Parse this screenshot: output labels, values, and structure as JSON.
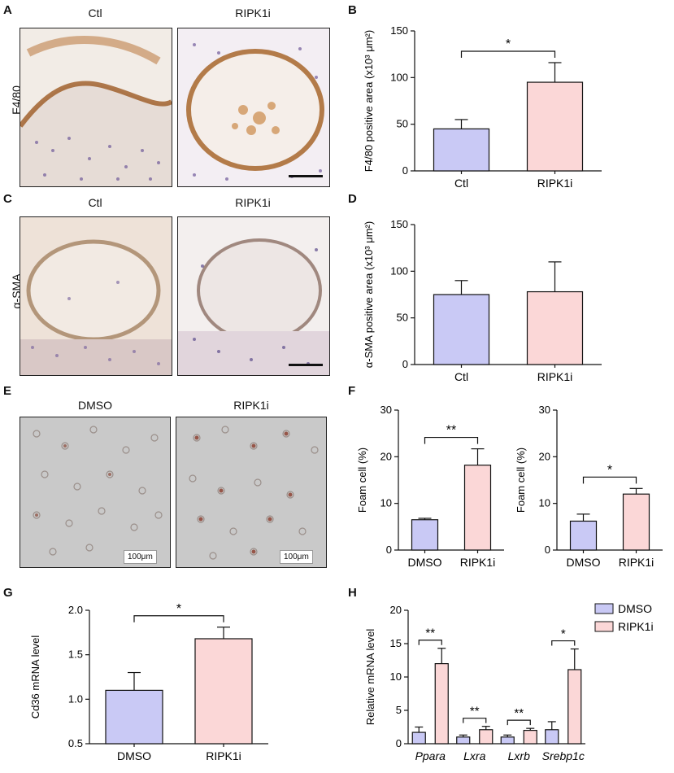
{
  "panels": {
    "A": {
      "letter": "A",
      "row_label": "F4/80",
      "left_title": "Ctl",
      "right_title": "RIPK1i"
    },
    "B": {
      "letter": "B"
    },
    "C": {
      "letter": "C",
      "row_label": "α-SMA",
      "left_title": "Ctl",
      "right_title": "RIPK1i"
    },
    "D": {
      "letter": "D"
    },
    "E": {
      "letter": "E",
      "left_title": "DMSO",
      "right_title": "RIPK1i",
      "scale_left": "100μm",
      "scale_right": "100μm"
    },
    "F": {
      "letter": "F"
    },
    "G": {
      "letter": "G"
    },
    "H": {
      "letter": "H"
    }
  },
  "colors": {
    "ctrl_fill": "#c9c9f5",
    "treat_fill": "#fbd7d7",
    "stroke": "#111111",
    "tissue_bg": "#f4ede6",
    "brown": "#b9763a",
    "purple": "#6f5a9a",
    "cell_bg": "#c9c9c9"
  },
  "chart_data": [
    {
      "id": "B",
      "type": "bar",
      "categories": [
        "Ctl",
        "RIPK1i"
      ],
      "values": [
        45,
        95
      ],
      "errors": [
        10,
        21
      ],
      "ylim": [
        0,
        150
      ],
      "yticks": [
        0,
        50,
        100,
        150
      ],
      "ylabel": "F4/80 positive area (x10³ μm²)",
      "significance": [
        {
          "from": 0,
          "to": 1,
          "label": "*"
        }
      ]
    },
    {
      "id": "D",
      "type": "bar",
      "categories": [
        "Ctl",
        "RIPK1i"
      ],
      "values": [
        75,
        78
      ],
      "errors": [
        15,
        32
      ],
      "ylim": [
        0,
        150
      ],
      "yticks": [
        0,
        50,
        100,
        150
      ],
      "ylabel": "α-SMA positive area (x10³ μm²)",
      "significance": []
    },
    {
      "id": "F1",
      "type": "bar",
      "categories": [
        "DMSO",
        "RIPK1i"
      ],
      "values": [
        6.5,
        18.2
      ],
      "errors": [
        0.3,
        3.5
      ],
      "ylim": [
        0,
        30
      ],
      "yticks": [
        0,
        10,
        20,
        30
      ],
      "ylabel": "Foam cell (%)",
      "significance": [
        {
          "from": 0,
          "to": 1,
          "label": "**"
        }
      ]
    },
    {
      "id": "F2",
      "type": "bar",
      "categories": [
        "DMSO",
        "RIPK1i"
      ],
      "values": [
        6.2,
        12
      ],
      "errors": [
        1.5,
        1.2
      ],
      "ylim": [
        0,
        30
      ],
      "yticks": [
        0,
        10,
        20,
        30
      ],
      "ylabel": "Foam cell (%)",
      "significance": [
        {
          "from": 0,
          "to": 1,
          "label": "*"
        }
      ]
    },
    {
      "id": "G",
      "type": "bar",
      "categories": [
        "DMSO",
        "RIPK1i"
      ],
      "values": [
        1.1,
        1.68
      ],
      "errors": [
        0.2,
        0.13
      ],
      "ylim": [
        0.5,
        2.0
      ],
      "yticks": [
        0.5,
        1.0,
        1.5,
        2.0
      ],
      "ylabel": "Cd36 mRNA level",
      "significance": [
        {
          "from": 0,
          "to": 1,
          "label": "*"
        }
      ]
    },
    {
      "id": "H",
      "type": "bar",
      "categories": [
        "Ppara",
        "Lxra",
        "Lxrb",
        "Srebp1c"
      ],
      "series": [
        {
          "name": "DMSO",
          "values": [
            1.7,
            1.0,
            1.0,
            2.1
          ],
          "errors": [
            0.8,
            0.3,
            0.3,
            1.2
          ]
        },
        {
          "name": "RIPK1i",
          "values": [
            12,
            2.1,
            2.0,
            11.1
          ],
          "errors": [
            2.3,
            0.5,
            0.3,
            3.1
          ]
        }
      ],
      "ylim": [
        0,
        20
      ],
      "yticks": [
        0,
        5,
        10,
        15,
        20
      ],
      "ylabel": "Relative mRNA level",
      "legend": "top-right",
      "significance": [
        {
          "group": 0,
          "label": "**"
        },
        {
          "group": 1,
          "label": "**"
        },
        {
          "group": 2,
          "label": "**"
        },
        {
          "group": 3,
          "label": "*"
        }
      ]
    }
  ]
}
